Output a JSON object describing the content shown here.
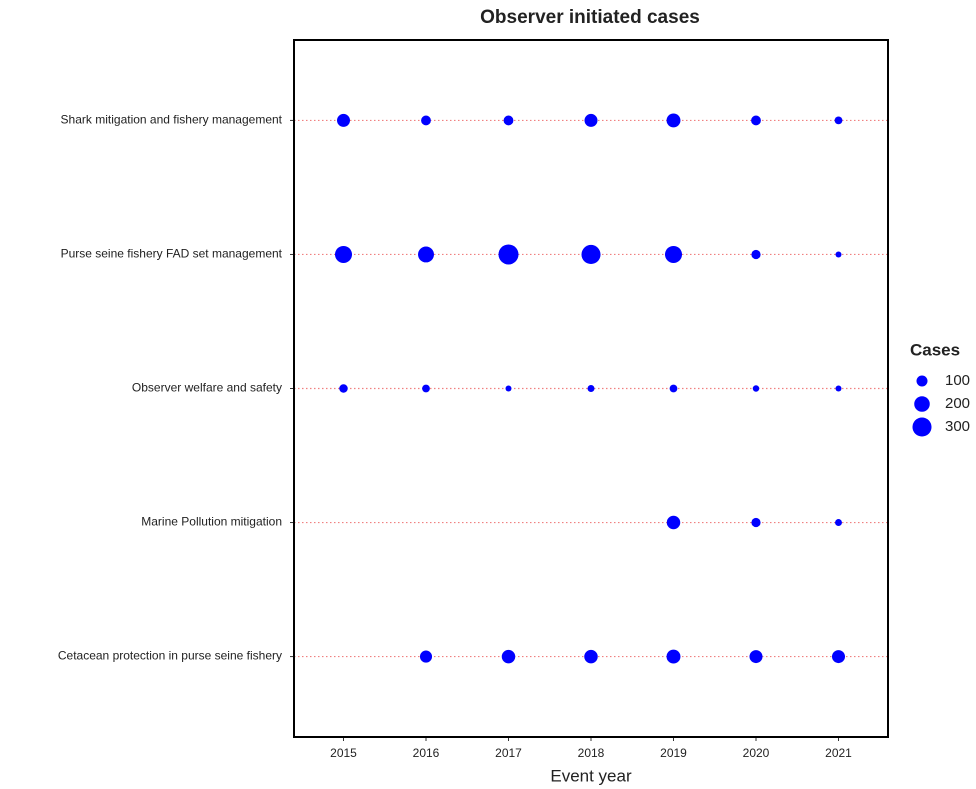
{
  "chart_data": {
    "type": "bubble",
    "title": "Observer initiated cases",
    "x_label": "Event year",
    "x": [
      2015,
      2016,
      2017,
      2018,
      2019,
      2020,
      2021
    ],
    "xlim": [
      2014.4,
      2021.6
    ],
    "xticks": [
      2015,
      2016,
      2017,
      2018,
      2019,
      2020,
      2021
    ],
    "color": "#0000ff",
    "row_line_color": "#f08080",
    "series": [
      {
        "name": "Shark mitigation and fishery management",
        "values": [
          140,
          80,
          80,
          140,
          160,
          80,
          50
        ]
      },
      {
        "name": "Purse seine fishery FAD set management",
        "values": [
          240,
          210,
          330,
          300,
          240,
          70,
          30
        ]
      },
      {
        "name": "Observer welfare and safety",
        "values": [
          60,
          50,
          30,
          40,
          50,
          35,
          30
        ]
      },
      {
        "name": "Marine Pollution mitigation",
        "values": [
          null,
          null,
          null,
          null,
          150,
          70,
          40
        ]
      },
      {
        "name": "Cetacean protection in purse seine fishery",
        "values": [
          null,
          120,
          150,
          150,
          160,
          140,
          140
        ]
      }
    ],
    "size_legend": {
      "title": "Cases",
      "values": [
        100,
        200,
        300
      ]
    }
  }
}
